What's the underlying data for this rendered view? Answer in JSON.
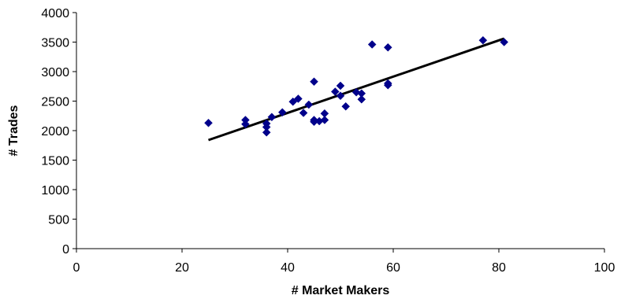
{
  "chart_data": {
    "type": "scatter",
    "xlabel": "# Market Makers",
    "ylabel": "# Trades",
    "xlim": [
      0,
      100
    ],
    "ylim": [
      0,
      4000
    ],
    "x_ticks": [
      0,
      20,
      40,
      60,
      80,
      100
    ],
    "y_ticks": [
      0,
      500,
      1000,
      1500,
      2000,
      2500,
      3000,
      3500,
      4000
    ],
    "x_tick_labels": [
      "0",
      "20",
      "40",
      "60",
      "80",
      "100"
    ],
    "y_tick_labels": [
      "0",
      "500",
      "1000",
      "1500",
      "2000",
      "2500",
      "3000",
      "3500",
      "4000"
    ],
    "grid": false,
    "legend": "none",
    "marker": "diamond",
    "colors": {
      "marker": "#00008b",
      "trendline": "#000000",
      "axis": "#000000"
    },
    "series": [
      {
        "x": [
          25,
          32,
          32,
          36,
          36,
          36,
          37,
          39,
          41,
          42,
          43,
          44,
          45,
          45,
          45,
          46,
          47,
          47,
          49,
          50,
          50,
          51,
          53,
          54,
          54,
          56,
          59,
          59,
          59,
          77,
          81
        ],
        "y": [
          2130,
          2180,
          2110,
          2120,
          2060,
          1970,
          2230,
          2310,
          2490,
          2540,
          2300,
          2440,
          2830,
          2180,
          2150,
          2160,
          2290,
          2180,
          2660,
          2760,
          2590,
          2410,
          2650,
          2630,
          2530,
          3460,
          3410,
          2800,
          2770,
          3530,
          3500
        ]
      }
    ],
    "trendline": {
      "x": [
        25,
        81
      ],
      "y": [
        1840,
        3560
      ]
    }
  }
}
